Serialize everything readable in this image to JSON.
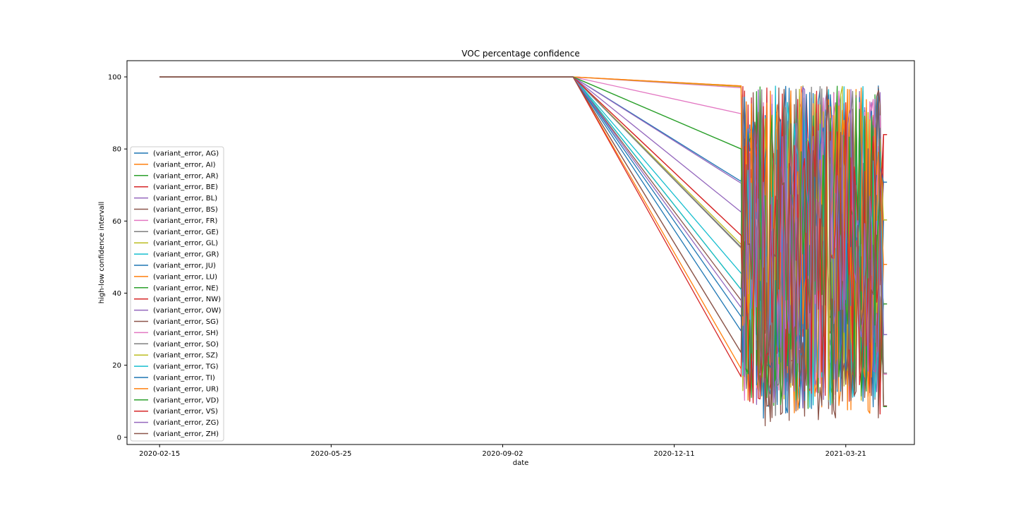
{
  "chart_data": {
    "type": "line",
    "title": "VOC percentage confidence",
    "xlabel": "date",
    "ylabel": "high-low confidence intervall",
    "x_ticks": [
      "2020-02-15",
      "2020-05-25",
      "2020-09-02",
      "2020-12-11",
      "2021-03-21"
    ],
    "y_ticks": [
      0,
      20,
      40,
      60,
      80,
      100
    ],
    "xlim": [
      "2020-01-27",
      "2021-04-30"
    ],
    "ylim": [
      -2,
      104.5
    ],
    "legend_position": "center-left",
    "grid": false,
    "dates": {
      "first_point": "2020-02-15",
      "plateau_end": "2020-10-13",
      "drop_end": "2021-01-19",
      "volatile_start": "2021-01-20",
      "last_point": "2021-04-14"
    },
    "colors": [
      "#1f77b4",
      "#ff7f0e",
      "#2ca02c",
      "#d62728",
      "#9467bd",
      "#8c564b",
      "#e377c2",
      "#7f7f7f",
      "#bcbd22",
      "#17becf"
    ],
    "series": [
      {
        "name": "(variant_error, AG)",
        "plateau": 100,
        "drop_end": 71.0,
        "last": 70.8,
        "vol_min": 8,
        "vol_max": 97.5
      },
      {
        "name": "(variant_error, AI)",
        "plateau": 100,
        "drop_end": 97.5,
        "last": 48.0,
        "vol_min": 10,
        "vol_max": 97.5
      },
      {
        "name": "(variant_error, AR)",
        "plateau": 100,
        "drop_end": 80.0,
        "last": 37.0,
        "vol_min": 10,
        "vol_max": 97.5
      },
      {
        "name": "(variant_error, BE)",
        "plateau": 100,
        "drop_end": 56.0,
        "last": 84.0,
        "vol_min": 8,
        "vol_max": 97.5
      },
      {
        "name": "(variant_error, BL)",
        "plateau": 100,
        "drop_end": 70.5,
        "last": 28.5,
        "vol_min": 8,
        "vol_max": 97.5
      },
      {
        "name": "(variant_error, BS)",
        "plateau": 100,
        "drop_end": 38.0,
        "last": 37.0,
        "vol_min": 5,
        "vol_max": 90
      },
      {
        "name": "(variant_error, FR)",
        "plateau": 100,
        "drop_end": 89.8,
        "last": 17.5,
        "vol_min": 10,
        "vol_max": 97.5
      },
      {
        "name": "(variant_error, GE)",
        "plateau": 100,
        "drop_end": 52.5,
        "last": 17.8,
        "vol_min": 6,
        "vol_max": 97.5
      },
      {
        "name": "(variant_error, GL)",
        "plateau": 100,
        "drop_end": 53.5,
        "last": 60.3,
        "vol_min": 10,
        "vol_max": 97.5
      },
      {
        "name": "(variant_error, GR)",
        "plateau": 100,
        "drop_end": 45.5,
        "last": 28.5,
        "vol_min": 8,
        "vol_max": 97.5
      },
      {
        "name": "(variant_error, JU)",
        "plateau": 100,
        "drop_end": 29.5,
        "last": 60.3,
        "vol_min": 5,
        "vol_max": 97.5
      },
      {
        "name": "(variant_error, LU)",
        "plateau": 100,
        "drop_end": 19.0,
        "last": 48.0,
        "vol_min": 6,
        "vol_max": 97.5
      },
      {
        "name": "(variant_error, NE)",
        "plateau": 100,
        "drop_end": 41.0,
        "last": 37.0,
        "vol_min": 8,
        "vol_max": 97.5
      },
      {
        "name": "(variant_error, NW)",
        "plateau": 100,
        "drop_end": 16.8,
        "last": 84.0,
        "vol_min": 5,
        "vol_max": 97.5
      },
      {
        "name": "(variant_error, OW)",
        "plateau": 100,
        "drop_end": 62.5,
        "last": 28.5,
        "vol_min": 10,
        "vol_max": 97.5
      },
      {
        "name": "(variant_error, SG)",
        "plateau": 100,
        "drop_end": 23.5,
        "last": 8.7,
        "vol_min": 3,
        "vol_max": 97.5
      },
      {
        "name": "(variant_error, SH)",
        "plateau": 100,
        "drop_end": 97.0,
        "last": 17.5,
        "vol_min": 10,
        "vol_max": 97.5
      },
      {
        "name": "(variant_error, SO)",
        "plateau": 100,
        "drop_end": 52.8,
        "last": 17.8,
        "vol_min": 8,
        "vol_max": 97.5
      },
      {
        "name": "(variant_error, SZ)",
        "plateau": 100,
        "drop_end": 97.3,
        "last": 60.3,
        "vol_min": 10,
        "vol_max": 97.5
      },
      {
        "name": "(variant_error, TG)",
        "plateau": 100,
        "drop_end": 41.0,
        "last": 28.5,
        "vol_min": 8,
        "vol_max": 97.5
      },
      {
        "name": "(variant_error, TI)",
        "plateau": 100,
        "drop_end": 33.5,
        "last": 70.8,
        "vol_min": 5,
        "vol_max": 97.5
      },
      {
        "name": "(variant_error, UR)",
        "plateau": 100,
        "drop_end": 97.5,
        "last": 48.0,
        "vol_min": 10,
        "vol_max": 97.5
      },
      {
        "name": "(variant_error, VD)",
        "plateau": 100,
        "drop_end": 80.0,
        "last": 8.5,
        "vol_min": 5,
        "vol_max": 97.5
      },
      {
        "name": "(variant_error, VS)",
        "plateau": 100,
        "drop_end": 56.0,
        "last": 84.0,
        "vol_min": 6,
        "vol_max": 97.5
      },
      {
        "name": "(variant_error, ZG)",
        "plateau": 100,
        "drop_end": 36.0,
        "last": 28.5,
        "vol_min": 8,
        "vol_max": 97.5
      },
      {
        "name": "(variant_error, ZH)",
        "plateau": 100,
        "drop_end": 23.5,
        "last": 8.7,
        "vol_min": 3,
        "vol_max": 97.5
      }
    ]
  }
}
